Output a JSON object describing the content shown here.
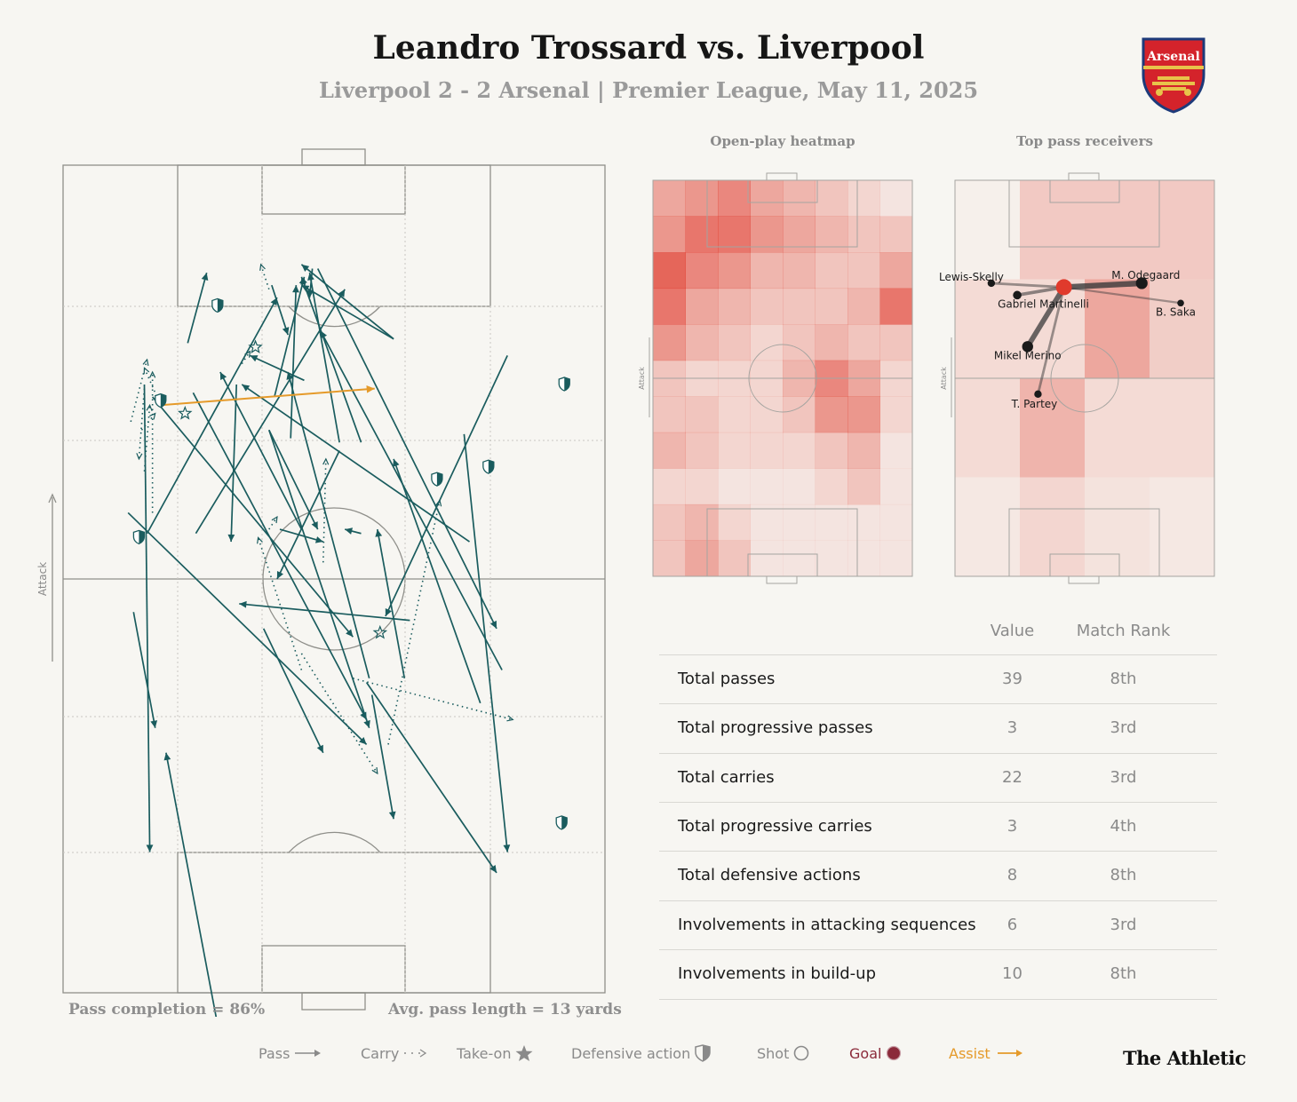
{
  "header": {
    "title": "Leandro Trossard vs. Liverpool",
    "subtitle": "Liverpool 2 - 2 Arsenal | Premier League, May 11, 2025",
    "crest_text": "Arsenal"
  },
  "panels": {
    "heatmap_title": "Open-play heatmap",
    "receivers_title": "Top pass receivers",
    "attack_label": "Attack"
  },
  "pitch_notes": {
    "pass_completion": "Pass completion = 86%",
    "avg_pass_length": "Avg. pass length = 13 yards"
  },
  "stats": {
    "col_value": "Value",
    "col_rank": "Match Rank",
    "rows": [
      {
        "label": "Total passes",
        "value": "39",
        "rank": "8th"
      },
      {
        "label": "Total progressive passes",
        "value": "3",
        "rank": "3rd"
      },
      {
        "label": "Total carries",
        "value": "22",
        "rank": "3rd"
      },
      {
        "label": "Total progressive carries",
        "value": "3",
        "rank": "4th"
      },
      {
        "label": "Total defensive actions",
        "value": "8",
        "rank": "8th"
      },
      {
        "label": "Involvements in attacking sequences",
        "value": "6",
        "rank": "3rd"
      },
      {
        "label": "Involvements in build-up",
        "value": "10",
        "rank": "8th"
      }
    ]
  },
  "legend": {
    "pass": "Pass",
    "carry": "Carry",
    "takeon": "Take-on",
    "defensive": "Defensive action",
    "shot": "Shot",
    "goal": "Goal",
    "assist": "Assist"
  },
  "colors": {
    "pass": "#1a5c5e",
    "assist": "#e59a2a",
    "goal": "#8b2a3a",
    "heat_high": "#e03a2c",
    "heat_low": "#fbeee9",
    "background": "#f7f6f2"
  },
  "brand": "The Athletic",
  "chart_data": [
    {
      "type": "scatter",
      "name": "Event map",
      "passes": [
        [
          120,
          420,
          560,
          700
        ],
        [
          130,
          540,
          170,
          680
        ],
        [
          155,
          445,
          395,
          160
        ],
        [
          245,
          445,
          520,
          150
        ],
        [
          420,
          330,
          430,
          145
        ],
        [
          370,
          560,
          480,
          710
        ],
        [
          750,
          455,
          330,
          265
        ],
        [
          510,
          335,
          455,
          130
        ],
        [
          550,
          335,
          440,
          135
        ],
        [
          445,
          260,
          345,
          230
        ],
        [
          610,
          210,
          440,
          120
        ],
        [
          610,
          210,
          440,
          145
        ],
        [
          510,
          345,
          395,
          500
        ],
        [
          470,
          125,
          800,
          560
        ],
        [
          460,
          125,
          455,
          160
        ],
        [
          385,
          145,
          415,
          205
        ],
        [
          390,
          280,
          445,
          135
        ],
        [
          230,
          215,
          265,
          130
        ],
        [
          240,
          275,
          560,
          670
        ],
        [
          565,
          620,
          415,
          250
        ],
        [
          570,
          640,
          610,
          790
        ],
        [
          640,
          550,
          325,
          530
        ],
        [
          810,
          610,
          475,
          200
        ],
        [
          560,
          625,
          800,
          855
        ],
        [
          440,
          440,
          290,
          250
        ],
        [
          380,
          320,
          470,
          440
        ],
        [
          400,
          440,
          480,
          455
        ],
        [
          550,
          445,
          520,
          440
        ],
        [
          320,
          265,
          310,
          455
        ],
        [
          380,
          320,
          565,
          680
        ],
        [
          740,
          325,
          820,
          830
        ],
        [
          820,
          230,
          595,
          545
        ],
        [
          630,
          620,
          580,
          440
        ],
        [
          770,
          650,
          610,
          355
        ],
        [
          165,
          280,
          535,
          570
        ],
        [
          150,
          265,
          160,
          830
        ],
        [
          300,
          1090,
          190,
          710
        ]
      ],
      "carries": [
        [
          125,
          310,
          155,
          235
        ],
        [
          380,
          150,
          365,
          120
        ],
        [
          150,
          370,
          160,
          290
        ],
        [
          180,
          290,
          150,
          245
        ],
        [
          440,
          610,
          360,
          450
        ],
        [
          440,
          590,
          580,
          735
        ],
        [
          535,
          620,
          830,
          670
        ],
        [
          600,
          700,
          695,
          405
        ],
        [
          480,
          480,
          485,
          355
        ],
        [
          380,
          440,
          395,
          425
        ],
        [
          145,
          320,
          170,
          300
        ],
        [
          330,
          240,
          345,
          225
        ],
        [
          165,
          420,
          165,
          250
        ],
        [
          150,
          270,
          140,
          355
        ]
      ],
      "takeons": [
        [
          225,
          300
        ],
        [
          585,
          565
        ],
        [
          355,
          220
        ]
      ],
      "defensive": [
        [
          285,
          170
        ],
        [
          180,
          285
        ],
        [
          140,
          450
        ],
        [
          190,
          1105
        ],
        [
          925,
          265
        ],
        [
          920,
          795
        ],
        [
          785,
          365
        ],
        [
          690,
          380
        ]
      ],
      "assists": [
        [
          180,
          290,
          575,
          270
        ]
      ]
    },
    {
      "type": "heatmap",
      "name": "Open-play heatmap",
      "rows": [
        [
          0.5,
          0.6,
          0.7,
          0.5,
          0.4,
          0.3,
          0.2,
          0.1
        ],
        [
          0.6,
          0.8,
          0.8,
          0.6,
          0.5,
          0.4,
          0.3,
          0.3
        ],
        [
          0.9,
          0.7,
          0.6,
          0.4,
          0.4,
          0.3,
          0.3,
          0.5
        ],
        [
          0.8,
          0.5,
          0.4,
          0.3,
          0.3,
          0.3,
          0.4,
          0.8
        ],
        [
          0.6,
          0.4,
          0.3,
          0.2,
          0.3,
          0.4,
          0.3,
          0.3
        ],
        [
          0.3,
          0.2,
          0.2,
          0.2,
          0.4,
          0.7,
          0.5,
          0.2
        ],
        [
          0.3,
          0.3,
          0.2,
          0.2,
          0.3,
          0.6,
          0.6,
          0.2
        ],
        [
          0.4,
          0.3,
          0.2,
          0.2,
          0.2,
          0.3,
          0.4,
          0.1
        ],
        [
          0.2,
          0.2,
          0.1,
          0.1,
          0.1,
          0.2,
          0.3,
          0.1
        ],
        [
          0.3,
          0.4,
          0.2,
          0.1,
          0.1,
          0.1,
          0.1,
          0.1
        ],
        [
          0.3,
          0.5,
          0.3,
          0.1,
          0.1,
          0.1,
          0.1,
          0.1
        ]
      ]
    },
    {
      "type": "scatter",
      "name": "Top pass receivers",
      "zones": [
        [
          0.05,
          0.35,
          0.35,
          0.35
        ],
        [
          0.2,
          0.2,
          0.6,
          0.3
        ],
        [
          0.2,
          0.5,
          0.2,
          0.2
        ],
        [
          0.1,
          0.25,
          0.15,
          0.1
        ]
      ],
      "origin": [
        0.42,
        0.27
      ],
      "receivers": [
        {
          "name": "M. Lewis-Skelly",
          "x": 0.14,
          "y": 0.26,
          "weight": 0.3
        },
        {
          "name": "Gabriel Martinelli",
          "x": 0.24,
          "y": 0.29,
          "weight": 0.45
        },
        {
          "name": "M. Odegaard",
          "x": 0.72,
          "y": 0.26,
          "weight": 0.9
        },
        {
          "name": "B. Saka",
          "x": 0.87,
          "y": 0.31,
          "weight": 0.2
        },
        {
          "name": "Mikel Merino",
          "x": 0.28,
          "y": 0.42,
          "weight": 0.8
        },
        {
          "name": "T. Partey",
          "x": 0.32,
          "y": 0.54,
          "weight": 0.3
        }
      ]
    }
  ]
}
